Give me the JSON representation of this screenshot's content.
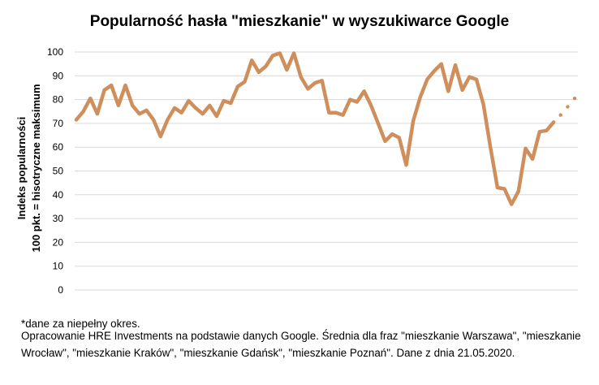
{
  "chart_data": {
    "type": "line",
    "title": "Popularność hasła \"mieszkanie\" w wyszukiwarce Google",
    "ylabel_line1": "Indeks popularności",
    "ylabel_line2": "100 pkt. = hisotryczne maksimum",
    "ylim": [
      0,
      100
    ],
    "yticks": [
      0,
      10,
      20,
      30,
      40,
      50,
      60,
      70,
      80,
      90,
      100
    ],
    "grid": true,
    "series_color": "#cf8f5d",
    "series": [
      {
        "values": [
          71.5,
          75,
          80.5,
          74,
          84,
          86,
          77.5,
          86,
          77.5,
          74,
          75.5,
          71.5,
          64.5,
          71.5,
          76.5,
          74.5,
          79.5,
          76.5,
          74,
          77.5,
          73,
          79.5,
          78.5,
          85.5,
          87.5,
          96.5,
          91.5,
          94,
          98.5,
          99.5,
          92.5,
          99.5,
          89.5,
          84.5,
          87,
          88,
          74.5,
          74.5,
          73.5,
          80,
          79,
          83.5,
          77.5,
          70,
          62.5,
          65.5,
          64,
          52.5,
          71,
          81,
          88.5,
          92,
          95,
          83.5,
          94.5,
          84,
          89.5,
          88.5,
          78,
          60,
          43,
          42.5,
          36,
          41.5,
          59.5,
          55,
          66.5,
          67,
          70.5
        ],
        "partial_values": [
          73.5,
          77,
          80.5
        ]
      }
    ]
  },
  "notes": {
    "footnote": "*dane za niepełny okres.",
    "source": "Opracowanie HRE Investments na podstawie danych Google. Średnia dla fraz \"mieszkanie Warszawa\", \"mieszkanie Wrocław\", \"mieszkanie Kraków\", \"mieszkanie Gdańsk\", \"mieszkanie Poznań\". Dane z dnia 21.05.2020."
  }
}
